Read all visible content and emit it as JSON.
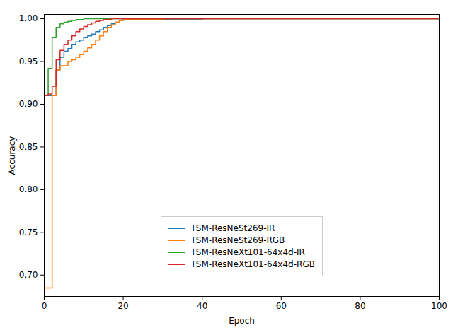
{
  "chart_data": {
    "type": "step",
    "xlabel": "Epoch",
    "ylabel": "Accuracy",
    "xlim": [
      0,
      100
    ],
    "ylim": [
      0.675,
      1.005
    ],
    "xticks": [
      0,
      20,
      40,
      60,
      80,
      100
    ],
    "yticks": [
      {
        "value": 0.7,
        "label": "0.70"
      },
      0.75,
      {
        "value": 0.8,
        "label": "0.80"
      },
      0.85,
      {
        "value": 0.9,
        "label": "0.90"
      },
      0.95,
      {
        "value": 1.0,
        "label": "1.00"
      }
    ],
    "grid": false,
    "legend": "lower center",
    "series": [
      {
        "name": "TSM-ResNeSt269-IR",
        "color": "#1f77b4",
        "x": [
          0,
          1,
          2,
          3,
          4,
          5,
          6,
          7,
          8,
          9,
          10,
          11,
          12,
          13,
          14,
          15,
          16,
          17,
          18,
          19,
          20,
          25,
          30,
          40,
          50,
          60,
          70,
          80,
          90,
          100
        ],
        "values": [
          0.91,
          0.91,
          0.91,
          0.94,
          0.955,
          0.962,
          0.965,
          0.97,
          0.973,
          0.975,
          0.978,
          0.98,
          0.982,
          0.985,
          0.987,
          0.99,
          0.992,
          0.994,
          0.996,
          0.998,
          0.999,
          0.999,
          0.999,
          1.0,
          1.0,
          1.0,
          1.0,
          1.0,
          1.0,
          1.0
        ]
      },
      {
        "name": "TSM-ResNeSt269-RGB",
        "color": "#ff7f0e",
        "x": [
          0,
          1,
          2,
          3,
          4,
          5,
          6,
          7,
          8,
          9,
          10,
          11,
          12,
          13,
          14,
          15,
          16,
          17,
          18,
          19,
          20,
          25,
          30,
          40,
          50,
          60,
          70,
          80,
          90,
          100
        ],
        "values": [
          0.685,
          0.685,
          0.91,
          0.94,
          0.945,
          0.945,
          0.95,
          0.952,
          0.955,
          0.958,
          0.962,
          0.966,
          0.97,
          0.975,
          0.98,
          0.985,
          0.99,
          0.993,
          0.996,
          0.998,
          0.999,
          0.999,
          1.0,
          1.0,
          1.0,
          1.0,
          1.0,
          1.0,
          1.0,
          1.0
        ]
      },
      {
        "name": "TSM-ResNeXt101-64x4d-IR",
        "color": "#2ca02c",
        "x": [
          0,
          1,
          2,
          3,
          4,
          5,
          6,
          7,
          8,
          9,
          10,
          11,
          12,
          13,
          14,
          15,
          20,
          25,
          30,
          40,
          50,
          60,
          70,
          80,
          90,
          100
        ],
        "values": [
          0.91,
          0.942,
          0.978,
          0.99,
          0.994,
          0.996,
          0.997,
          0.998,
          0.999,
          0.999,
          1.0,
          1.0,
          1.0,
          1.0,
          1.0,
          1.0,
          1.0,
          1.0,
          1.0,
          1.0,
          1.0,
          1.0,
          1.0,
          1.0,
          1.0,
          1.0
        ]
      },
      {
        "name": "TSM-ResNeXt101-64x4d-RGB",
        "color": "#d62728",
        "x": [
          0,
          1,
          2,
          3,
          4,
          5,
          6,
          7,
          8,
          9,
          10,
          11,
          12,
          13,
          14,
          15,
          16,
          17,
          18,
          19,
          20,
          25,
          30,
          40,
          50,
          60,
          70,
          80,
          90,
          100
        ],
        "values": [
          0.91,
          0.912,
          0.921,
          0.952,
          0.963,
          0.97,
          0.975,
          0.98,
          0.985,
          0.988,
          0.991,
          0.993,
          0.995,
          0.997,
          0.998,
          0.999,
          0.999,
          1.0,
          1.0,
          1.0,
          1.0,
          1.0,
          1.0,
          1.0,
          1.0,
          1.0,
          1.0,
          1.0,
          1.0,
          1.0
        ]
      }
    ]
  }
}
